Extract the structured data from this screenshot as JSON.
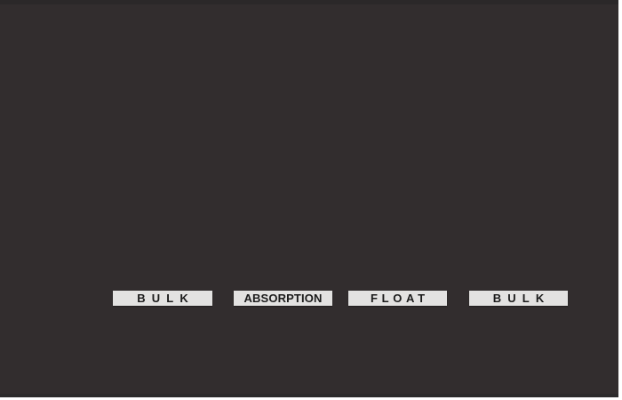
{
  "page": {
    "background": "#FFFFFF"
  },
  "video_frame": {
    "background": "#322D2E",
    "top_band_color": "#2B2829",
    "bottom_band_color": "#2C2A2B",
    "label_background": "#E3E2E1",
    "label_text_color": "#1B1B1B",
    "stage_labels": [
      {
        "text": "BULK"
      },
      {
        "text": "ABSORPTION"
      },
      {
        "text": "FLOAT"
      },
      {
        "text": "BULK"
      }
    ]
  }
}
